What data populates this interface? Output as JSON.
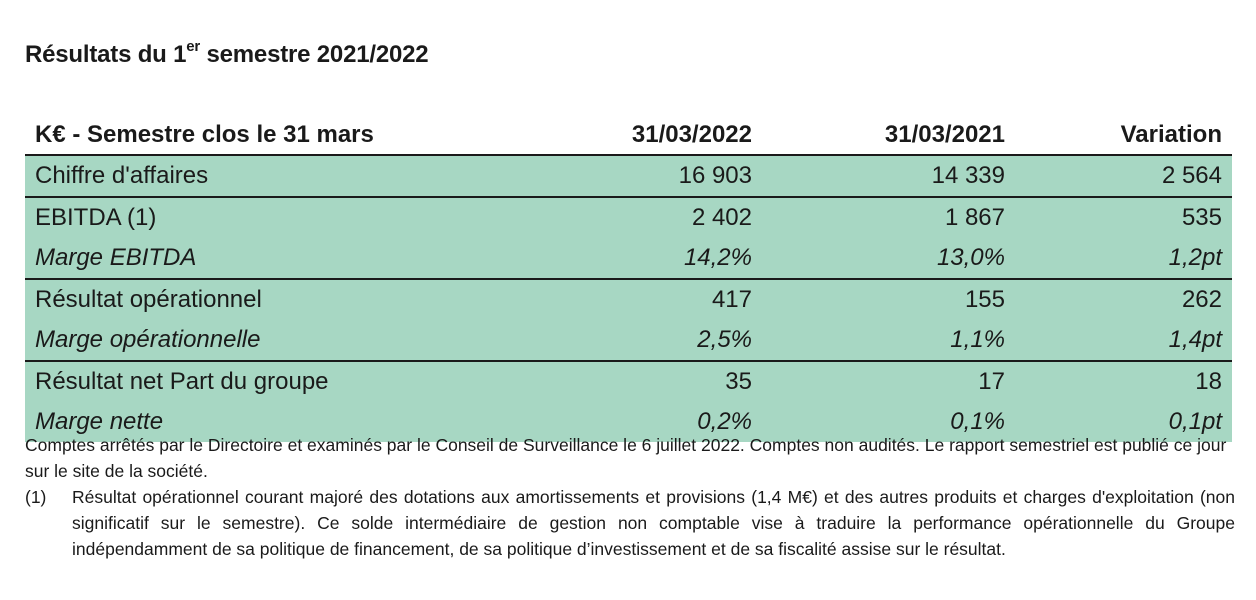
{
  "title": {
    "main": "Résultats du 1",
    "sup": "er",
    "rest": " semestre 2021/2022"
  },
  "table": {
    "headers": [
      "K€ - Semestre clos le 31 mars",
      "31/03/2022",
      "31/03/2021",
      "Variation"
    ],
    "rows": [
      {
        "label": "Chiffre d'affaires",
        "values": [
          "16 903",
          "14 339",
          "2 564"
        ]
      },
      {
        "label": "EBITDA (1)",
        "values": [
          "2 402",
          "1 867",
          "535"
        ]
      },
      {
        "label": "Marge EBITDA",
        "values": [
          "14,2%",
          "13,0%",
          "1,2pt"
        ]
      },
      {
        "label": "Résultat opérationnel",
        "values": [
          "417",
          "155",
          "262"
        ]
      },
      {
        "label": "Marge opérationnelle",
        "values": [
          "2,5%",
          "1,1%",
          "1,4pt"
        ]
      },
      {
        "label": "Résultat net Part du groupe",
        "values": [
          "35",
          "17",
          "18"
        ]
      },
      {
        "label": "Marge nette",
        "values": [
          "0,2%",
          "0,1%",
          "0,1pt"
        ]
      }
    ]
  },
  "notes": {
    "intro": "Comptes arrêtés par le Directoire et examinés par le Conseil de Surveillance le 6 juillet 2022.  Comptes non audités. Le rapport semestriel est publié ce jour sur le site de la société.",
    "footnote_marker": "(1)",
    "footnote_text": "Résultat opérationnel courant majoré des dotations aux amortissements et provisions (1,4 M€) et des autres produits et charges d'exploitation (non significatif sur le semestre). Ce solde intermédiaire de gestion non comptable vise à traduire la performance opérationnelle du Groupe indépendamment de sa politique de financement, de sa politique d’investissement et de sa fiscalité assise sur le résultat."
  }
}
